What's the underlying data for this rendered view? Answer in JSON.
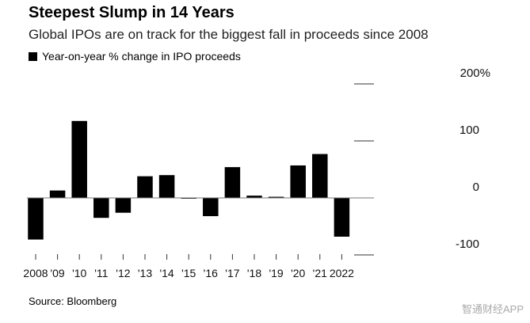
{
  "chart_data": {
    "type": "bar",
    "title": "Steepest Slump in 14 Years",
    "subtitle": "Global IPOs are on track for the biggest fall in proceeds since 2008",
    "legend": "Year-on-year % change in IPO proceeds",
    "categories": [
      "2008",
      "'09",
      "'10",
      "'11",
      "'12",
      "'13",
      "'14",
      "'15",
      "'16",
      "'17",
      "'18",
      "'19",
      "'20",
      "'21",
      "2022"
    ],
    "values": [
      -73,
      13,
      135,
      -35,
      -26,
      38,
      40,
      -1,
      -32,
      54,
      4,
      2,
      57,
      77,
      -68
    ],
    "yticks": [
      {
        "v": 200,
        "label": "200%"
      },
      {
        "v": 100,
        "label": "100"
      },
      {
        "v": 0,
        "label": "0"
      },
      {
        "v": -100,
        "label": "-100"
      }
    ],
    "ylim": [
      -100,
      200
    ],
    "xlabel": "",
    "ylabel": "",
    "bar_color": "#000000"
  },
  "source": "Source: Bloomberg",
  "watermark": "智通财经APP"
}
